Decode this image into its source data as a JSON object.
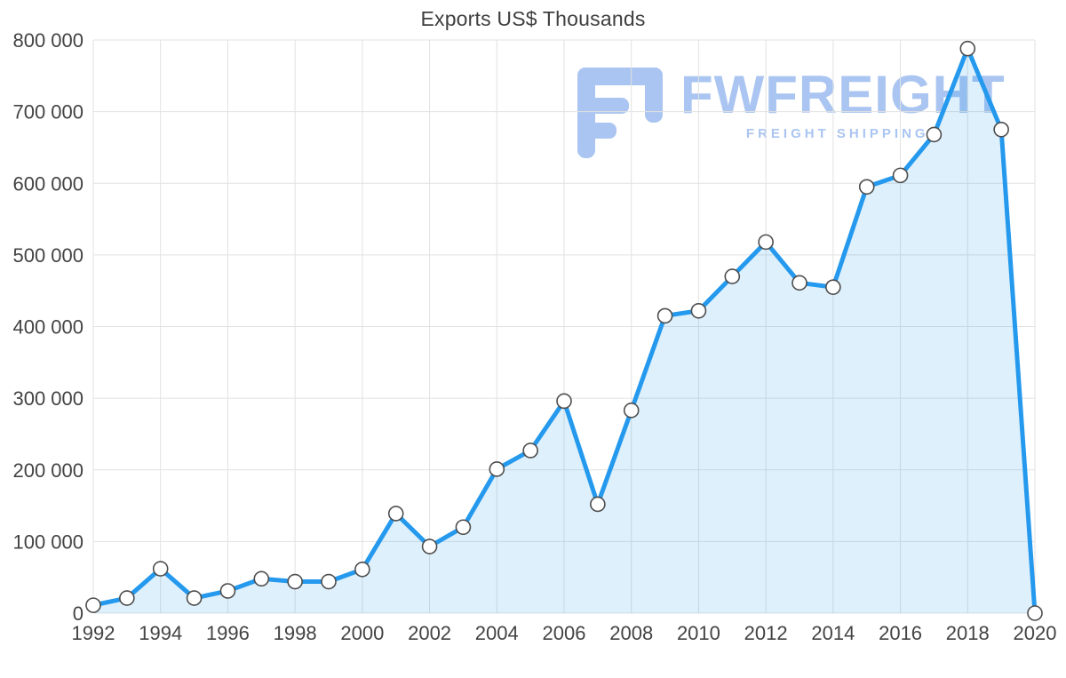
{
  "chart_data": {
    "type": "area",
    "title": "Exports US$ Thousands",
    "xlabel": "",
    "ylabel": "",
    "x": [
      1992,
      1993,
      1994,
      1995,
      1996,
      1997,
      1998,
      1999,
      2000,
      2001,
      2002,
      2003,
      2004,
      2005,
      2006,
      2007,
      2008,
      2009,
      2010,
      2011,
      2012,
      2013,
      2014,
      2015,
      2016,
      2017,
      2018,
      2019,
      2020
    ],
    "values": [
      11000,
      21000,
      62000,
      21000,
      31000,
      48000,
      44000,
      44000,
      61000,
      139000,
      93000,
      120000,
      201000,
      227000,
      296000,
      152000,
      283000,
      415000,
      422000,
      470000,
      518000,
      461000,
      455000,
      595000,
      611000,
      668000,
      788000,
      675000,
      0
    ],
    "ylim": [
      0,
      800000
    ],
    "ytick_step": 100000,
    "ytick_labels": [
      "0",
      "100 000",
      "200 000",
      "300 000",
      "400 000",
      "500 000",
      "600 000",
      "700 000",
      "800 000"
    ],
    "xtick_labels": [
      "1992",
      "1994",
      "1996",
      "1998",
      "2000",
      "2002",
      "2004",
      "2006",
      "2008",
      "2010",
      "2012",
      "2014",
      "2016",
      "2018",
      "2020"
    ],
    "grid": true,
    "legend": "none",
    "colors": {
      "line": "#2499ed",
      "area": "#2499ed",
      "area_opacity": 0.15,
      "marker_fill": "#ffffff",
      "marker_stroke": "#4d4d4d",
      "grid": "#e2e2e2",
      "axis_text": "#434343",
      "title_text": "#3f3f3f"
    }
  },
  "watermark": {
    "brand": "FWFREIGHT",
    "tagline": "FREIGHT SHIPPING",
    "color": "#aac5f1"
  }
}
